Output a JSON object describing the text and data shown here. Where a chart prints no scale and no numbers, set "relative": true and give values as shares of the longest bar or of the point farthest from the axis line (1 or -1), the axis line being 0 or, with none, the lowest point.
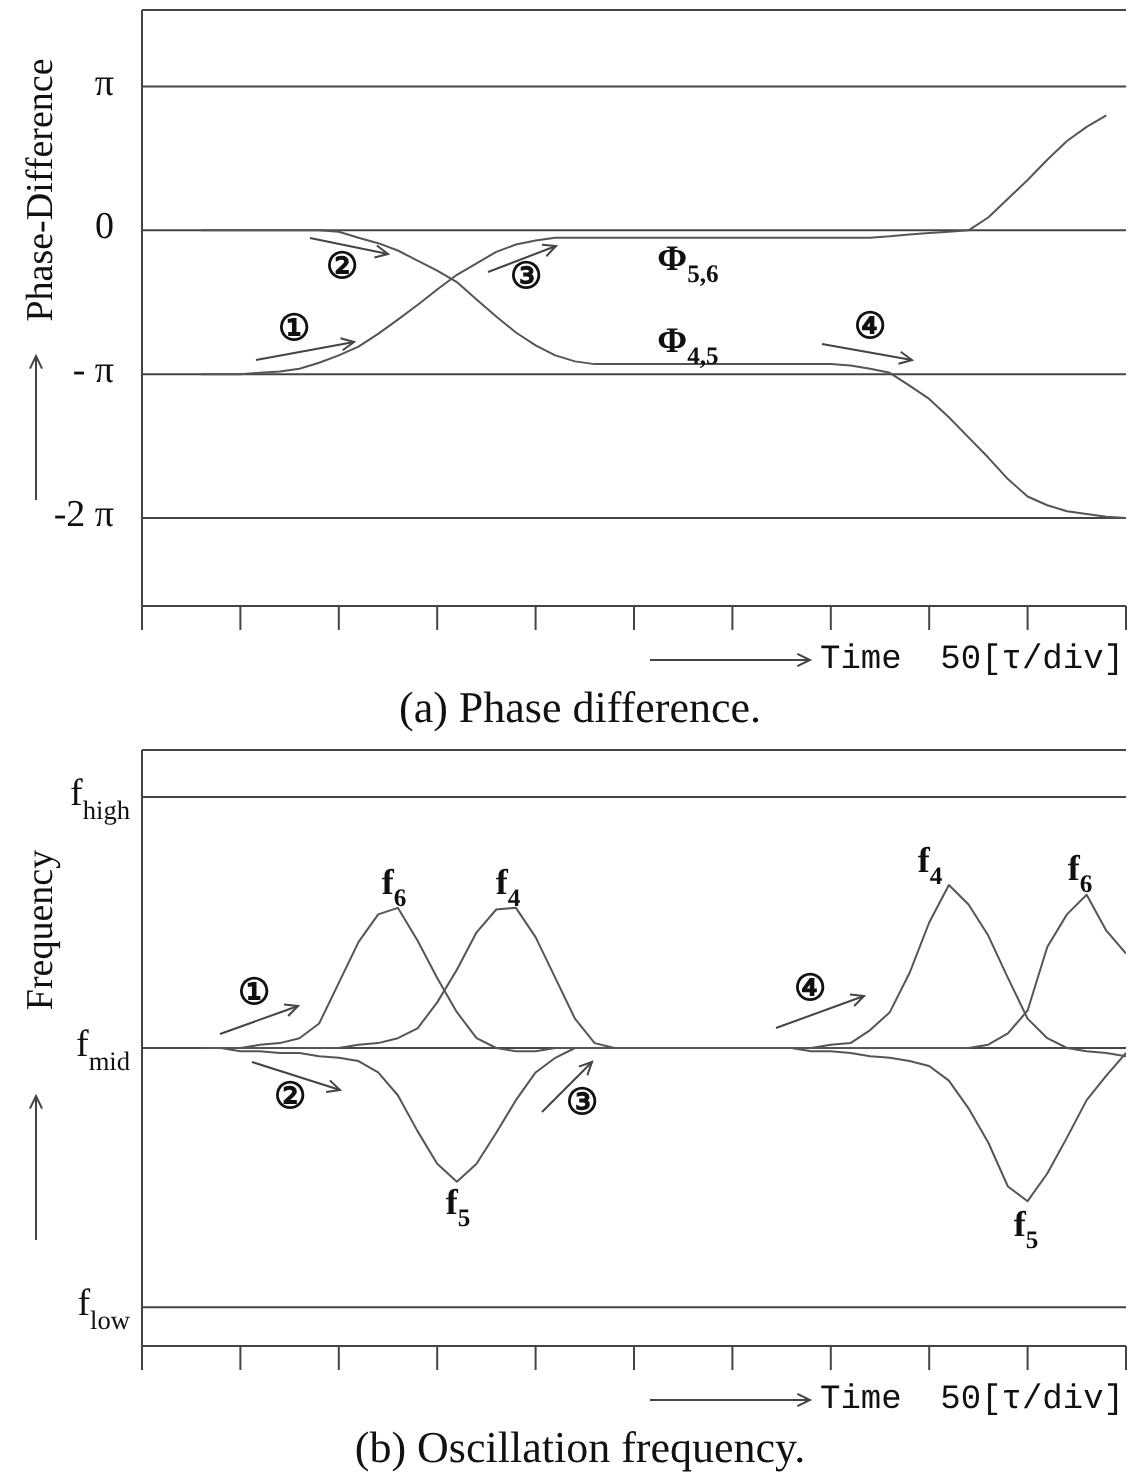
{
  "chart_data": [
    {
      "type": "line",
      "title": "(a) Phase difference.",
      "xlabel": "Time",
      "ylabel": "Phase-Difference",
      "categories": [
        null,
        null,
        null,
        null,
        null,
        null,
        null,
        null,
        null,
        null,
        null,
        null,
        null,
        null,
        null,
        null,
        null,
        null,
        null,
        null,
        null,
        null,
        null,
        null,
        null,
        null,
        null,
        null,
        null,
        null,
        null,
        null,
        null,
        null,
        null,
        null,
        null,
        null,
        null,
        null,
        null,
        null,
        null,
        null,
        null,
        null,
        null,
        null,
        null,
        null,
        null
      ],
      "ylim": [
        -8.2,
        4.81
      ],
      "yticks": [
        {
          "value": -6.28,
          "label": "-2 π"
        },
        {
          "value": -3.14,
          "label": "- π"
        },
        0,
        {
          "value": 3.14,
          "label": "π"
        }
      ],
      "grid": "y",
      "series": [
        {
          "color": "#555555",
          "values": [
            null,
            null,
            null,
            -3.14,
            -3.14,
            -3.14,
            -3.11,
            -3.08,
            -3.02,
            -2.89,
            -2.73,
            -2.54,
            -2.26,
            -1.95,
            -1.63,
            -1.29,
            -0.97,
            -0.72,
            -0.47,
            -0.31,
            -0.22,
            -0.16,
            -0.16,
            -0.16,
            -0.16,
            -0.16,
            -0.16,
            -0.16,
            -0.16,
            -0.16,
            -0.16,
            -0.16,
            -0.16,
            -0.16,
            -0.16,
            -0.16,
            -0.16,
            -0.16,
            -0.13,
            -0.09,
            -0.06,
            -0.03,
            0,
            0.28,
            0.69,
            1.1,
            1.54,
            1.95,
            2.26,
            2.51,
            null
          ]
        },
        {
          "color": "#555555",
          "values": [
            null,
            null,
            null,
            0,
            0,
            0,
            0,
            0,
            0,
            0,
            -0.03,
            -0.16,
            -0.28,
            -0.44,
            -0.66,
            -0.88,
            -1.13,
            -1.51,
            -1.88,
            -2.23,
            -2.51,
            -2.73,
            -2.86,
            -2.92,
            -2.92,
            -2.92,
            -2.92,
            -2.92,
            -2.92,
            -2.92,
            -2.92,
            -2.92,
            -2.92,
            -2.92,
            -2.92,
            -2.92,
            -2.95,
            -3.02,
            -3.11,
            -3.39,
            -3.68,
            -4.08,
            -4.52,
            -4.96,
            -5.43,
            -5.81,
            -6,
            -6.13,
            -6.19,
            -6.25,
            -6.28
          ]
        }
      ],
      "annotations": [
        "①",
        "②",
        "③",
        "④",
        "Φ$_{5,6}$",
        "Φ$_{4,5}$",
        "50[τ/div]"
      ]
    },
    {
      "type": "line",
      "title": "(b) Oscillation frequency.",
      "xlabel": "Time",
      "ylabel": "Frequency",
      "relative": true,
      "categories": [
        null,
        null,
        null,
        null,
        null,
        null,
        null,
        null,
        null,
        null,
        null,
        null,
        null,
        null,
        null,
        null,
        null,
        null,
        null,
        null,
        null,
        null,
        null,
        null,
        null,
        null,
        null,
        null,
        null,
        null,
        null,
        null,
        null,
        null,
        null,
        null,
        null,
        null,
        null,
        null,
        null,
        null,
        null,
        null,
        null,
        null,
        null,
        null,
        null,
        null,
        null
      ],
      "ref_lines": [
        {
          "axis": "y",
          "value": 1.54,
          "label": "f$_{high}$"
        },
        {
          "axis": "y",
          "value": 0,
          "label": "f$_{mid}$"
        },
        {
          "axis": "y",
          "value": -1.59,
          "label": "f$_{low}$"
        }
      ],
      "series": [
        {
          "color": "#555555",
          "values": [
            null,
            null,
            null,
            0,
            0,
            0,
            0.02,
            0.03,
            0.06,
            0.15,
            0.4,
            0.65,
            0.82,
            0.86,
            0.66,
            0.43,
            0.22,
            0.06,
            0,
            -0.02,
            -0.02,
            0,
            0,
            0,
            0,
            0,
            0,
            0,
            0,
            0,
            0,
            0,
            0,
            0,
            0,
            0,
            0,
            0,
            0,
            0,
            0,
            0,
            0,
            0.02,
            0.09,
            0.23,
            0.62,
            0.82,
            0.94,
            0.72,
            0.58
          ]
        },
        {
          "color": "#555555",
          "values": [
            null,
            null,
            null,
            0,
            0,
            0,
            0,
            0,
            0,
            0,
            0,
            0.02,
            0.03,
            0.06,
            0.12,
            0.28,
            0.48,
            0.71,
            0.85,
            0.86,
            0.68,
            0.43,
            0.18,
            0.03,
            0,
            0,
            0,
            0,
            0,
            0,
            0,
            0,
            0,
            0,
            0,
            0.02,
            0.03,
            0.11,
            0.22,
            0.46,
            0.77,
            1,
            0.88,
            0.69,
            0.43,
            0.18,
            0.06,
            0,
            -0.02,
            -0.03,
            -0.05
          ]
        },
        {
          "color": "#555555",
          "values": [
            null,
            null,
            null,
            0,
            0,
            -0.02,
            -0.02,
            -0.03,
            -0.03,
            -0.05,
            -0.06,
            -0.08,
            -0.15,
            -0.29,
            -0.51,
            -0.71,
            -0.82,
            -0.71,
            -0.52,
            -0.32,
            -0.15,
            -0.06,
            0,
            0,
            0,
            0,
            0,
            0,
            0,
            0,
            0,
            0,
            0,
            0,
            -0.02,
            -0.02,
            -0.03,
            -0.05,
            -0.06,
            -0.08,
            -0.11,
            -0.2,
            -0.37,
            -0.58,
            -0.85,
            -0.94,
            -0.77,
            -0.55,
            -0.32,
            -0.17,
            -0.03
          ]
        }
      ],
      "annotations": [
        "①",
        "②",
        "③",
        "④",
        "f$_{6}$",
        "f$_{4}$",
        "f$_{5}$",
        "f$_{4}$",
        "f$_{6}$",
        "f$_{5}$",
        "50[τ/div]"
      ]
    }
  ]
}
